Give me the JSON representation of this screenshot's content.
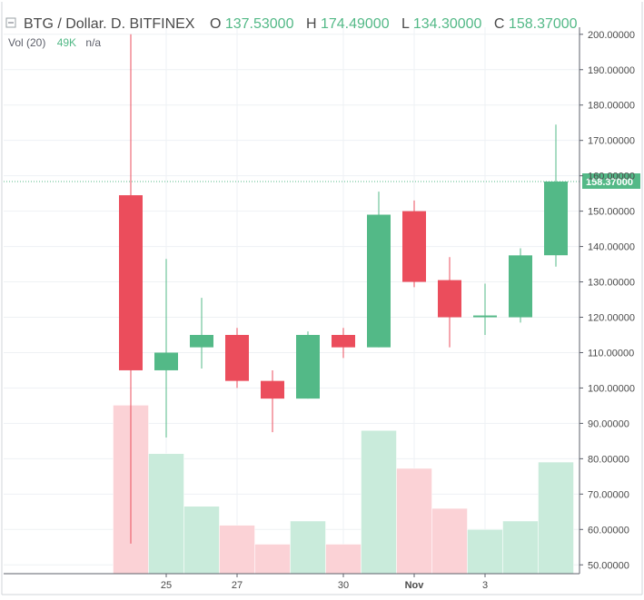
{
  "header": {
    "symbol": "BTG / Dollar. D. BITFINEX",
    "o_label": "O",
    "o_value": "137.53000",
    "h_label": "H",
    "h_value": "174.49000",
    "l_label": "L",
    "l_value": "134.30000",
    "c_label": "C",
    "c_value": "158.37000"
  },
  "volume_legend": {
    "label": "Vol (20)",
    "value": "49K",
    "ma": "n/a"
  },
  "colors": {
    "up": "#53b987",
    "down": "#eb4d5c",
    "up_volume": "#c9ebdb",
    "down_volume": "#fbd2d6",
    "grid": "#eef1f4",
    "axis_text": "#4a4a4a",
    "price_line": "#53b987"
  },
  "chart_data": {
    "type": "candlestick",
    "title": "BTG / Dollar. D. BITFINEX",
    "ylim": [
      47.5,
      202
    ],
    "y_ticks": [
      "200.00000",
      "190.00000",
      "180.00000",
      "170.00000",
      "160.00000",
      "150.00000",
      "140.00000",
      "130.00000",
      "120.00000",
      "110.00000",
      "100.00000",
      "90.00000",
      "80.00000",
      "70.00000",
      "60.00000",
      "50.00000"
    ],
    "x_ticks": [
      {
        "label": "25",
        "index": 1
      },
      {
        "label": "27",
        "index": 3
      },
      {
        "label": "30",
        "index": 6
      },
      {
        "label": "Nov",
        "index": 8
      },
      {
        "label": "3",
        "index": 10
      }
    ],
    "last_price_label": "158.37000",
    "last_price": 158.37,
    "candles": [
      {
        "o": 154.5,
        "h": 200.0,
        "l": 56.0,
        "c": 105.0
      },
      {
        "o": 105.0,
        "h": 136.5,
        "l": 86.0,
        "c": 110.0
      },
      {
        "o": 111.5,
        "h": 125.5,
        "l": 105.5,
        "c": 115.0
      },
      {
        "o": 115.0,
        "h": 117.0,
        "l": 100.0,
        "c": 102.0
      },
      {
        "o": 102.0,
        "h": 105.0,
        "l": 87.5,
        "c": 97.0
      },
      {
        "o": 97.0,
        "h": 116.0,
        "l": 97.0,
        "c": 115.0
      },
      {
        "o": 115.0,
        "h": 117.0,
        "l": 108.5,
        "c": 111.5
      },
      {
        "o": 111.5,
        "h": 155.5,
        "l": 111.5,
        "c": 149.0
      },
      {
        "o": 150.0,
        "h": 153.0,
        "l": 128.5,
        "c": 130.0
      },
      {
        "o": 130.5,
        "h": 137.0,
        "l": 111.5,
        "c": 120.0
      },
      {
        "o": 120.0,
        "h": 129.5,
        "l": 115.0,
        "c": 120.5
      },
      {
        "o": 120.0,
        "h": 139.5,
        "l": 118.5,
        "c": 137.5
      },
      {
        "o": 137.53,
        "h": 174.49,
        "l": 134.3,
        "c": 158.37
      }
    ],
    "volume_relative": [
      0.8,
      0.57,
      0.32,
      0.23,
      0.14,
      0.25,
      0.14,
      0.68,
      0.5,
      0.31,
      0.21,
      0.25,
      0.53
    ]
  }
}
